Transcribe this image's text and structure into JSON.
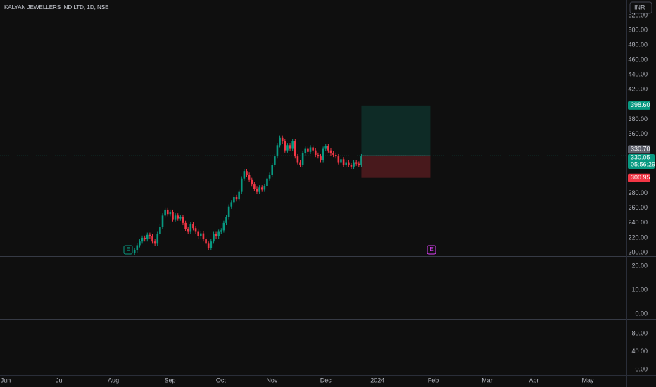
{
  "chart_data": [
    {
      "type": "candlestick",
      "title": "KALYAN JEWELLERS IND LTD, 1D, NSE",
      "currency": "INR",
      "up_color": "#089981",
      "down_color": "#f23645",
      "open": [
        200,
        203,
        210,
        215,
        220,
        218,
        224,
        222,
        215,
        212,
        225,
        235,
        250,
        258,
        252,
        255,
        245,
        250,
        246,
        248,
        240,
        232,
        228,
        238,
        233,
        228,
        222,
        226,
        218,
        212,
        206,
        215,
        225,
        222,
        228,
        230,
        240,
        248,
        262,
        268,
        275,
        272,
        282,
        300,
        310,
        305,
        298,
        292,
        286,
        282,
        288,
        285,
        290,
        300,
        305,
        318,
        330,
        345,
        355,
        350,
        338,
        345,
        340,
        350,
        330,
        322,
        318,
        334,
        340,
        336,
        342,
        338,
        332,
        330,
        325,
        340,
        344,
        338,
        334,
        332,
        330,
        322,
        326,
        318,
        322,
        318,
        316,
        322,
        320,
        318
      ],
      "high": [
        206,
        213,
        218,
        223,
        223,
        227,
        227,
        225,
        218,
        228,
        238,
        253,
        261,
        261,
        258,
        258,
        253,
        253,
        251,
        251,
        243,
        235,
        241,
        241,
        236,
        231,
        229,
        229,
        221,
        215,
        218,
        228,
        228,
        231,
        233,
        243,
        251,
        265,
        271,
        278,
        278,
        285,
        303,
        313,
        313,
        308,
        301,
        295,
        289,
        291,
        291,
        293,
        303,
        308,
        321,
        333,
        348,
        358,
        358,
        353,
        348,
        348,
        353,
        353,
        333,
        325,
        337,
        343,
        343,
        345,
        345,
        341,
        335,
        333,
        343,
        347,
        347,
        341,
        337,
        335,
        333,
        329,
        329,
        325,
        325,
        321,
        325,
        325,
        323,
        333
      ],
      "low": [
        197,
        200,
        207,
        212,
        215,
        215,
        219,
        212,
        209,
        209,
        222,
        232,
        247,
        249,
        249,
        242,
        242,
        243,
        243,
        237,
        229,
        225,
        225,
        230,
        225,
        219,
        219,
        215,
        209,
        203,
        203,
        212,
        219,
        219,
        225,
        227,
        237,
        245,
        259,
        265,
        269,
        269,
        279,
        297,
        302,
        295,
        289,
        283,
        279,
        279,
        282,
        282,
        287,
        297,
        302,
        315,
        327,
        342,
        347,
        335,
        335,
        337,
        337,
        327,
        319,
        315,
        315,
        331,
        333,
        333,
        335,
        329,
        327,
        322,
        322,
        337,
        335,
        331,
        329,
        327,
        319,
        319,
        315,
        315,
        315,
        313,
        313,
        317,
        315,
        315
      ],
      "close": [
        203,
        210,
        215,
        220,
        218,
        224,
        222,
        215,
        212,
        225,
        235,
        250,
        258,
        252,
        255,
        245,
        250,
        246,
        248,
        240,
        232,
        228,
        238,
        233,
        228,
        222,
        226,
        218,
        212,
        206,
        215,
        225,
        222,
        228,
        230,
        240,
        248,
        262,
        268,
        275,
        272,
        282,
        300,
        310,
        305,
        298,
        292,
        286,
        282,
        288,
        285,
        290,
        300,
        305,
        318,
        330,
        345,
        355,
        350,
        338,
        345,
        340,
        350,
        330,
        322,
        318,
        334,
        340,
        336,
        342,
        338,
        332,
        330,
        325,
        340,
        344,
        338,
        334,
        332,
        330,
        322,
        326,
        318,
        322,
        318,
        316,
        322,
        320,
        318,
        330.05
      ],
      "xlim": [
        -52.8,
        193
      ],
      "xticks": [
        {
          "value": -50.6,
          "label": "Jun"
        },
        {
          "value": -29.4,
          "label": "Jul"
        },
        {
          "value": -8.3,
          "label": "Aug"
        },
        {
          "value": 13.9,
          "label": "Sep"
        },
        {
          "value": 33.9,
          "label": "Oct"
        },
        {
          "value": 53.9,
          "label": "Nov"
        },
        {
          "value": 75,
          "label": "Dec"
        },
        {
          "value": 95.3,
          "label": "2024"
        },
        {
          "value": 117.2,
          "label": "Feb"
        },
        {
          "value": 138.3,
          "label": "Mar"
        },
        {
          "value": 156.7,
          "label": "Apr"
        },
        {
          "value": 177.8,
          "label": "May"
        }
      ],
      "ylim": [
        195.25,
        540.9
      ],
      "yticks": [
        {
          "value": 520,
          "label": "520.00"
        },
        {
          "value": 500,
          "label": "500.00"
        },
        {
          "value": 480,
          "label": "480.00"
        },
        {
          "value": 460,
          "label": "460.00"
        },
        {
          "value": 440,
          "label": "440.00"
        },
        {
          "value": 420,
          "label": "420.00"
        },
        {
          "value": 380,
          "label": "380.00"
        },
        {
          "value": 360,
          "label": "360.00"
        },
        {
          "value": 280,
          "label": "280.00"
        },
        {
          "value": 260,
          "label": "260.00"
        },
        {
          "value": 240,
          "label": "240.00"
        },
        {
          "value": 220,
          "label": "220.00"
        },
        {
          "value": 200,
          "label": "200.00"
        }
      ],
      "horizontal_line": 360,
      "position": {
        "target": {
          "value": 398.6,
          "label": "398.60"
        },
        "entry": {
          "value": 330.7,
          "label": "330.70"
        },
        "stop": {
          "value": 300.95,
          "label": "300.95"
        }
      },
      "last_price": 330.05,
      "countdown": "05:56:29",
      "annotations": [
        "E",
        "E"
      ]
    },
    {
      "type": "indicator",
      "ylim": [
        -2.35,
        24.1
      ],
      "yticks": [
        {
          "value": 20,
          "label": "20.00"
        },
        {
          "value": 10,
          "label": "10.00"
        },
        {
          "value": 0,
          "label": "0.00"
        }
      ]
    },
    {
      "type": "indicator",
      "ylim": [
        -12.5,
        111.4
      ],
      "yticks": [
        {
          "value": 80,
          "label": "80.00"
        },
        {
          "value": 40,
          "label": "40.00"
        },
        {
          "value": 0,
          "label": "0.00"
        }
      ]
    }
  ]
}
